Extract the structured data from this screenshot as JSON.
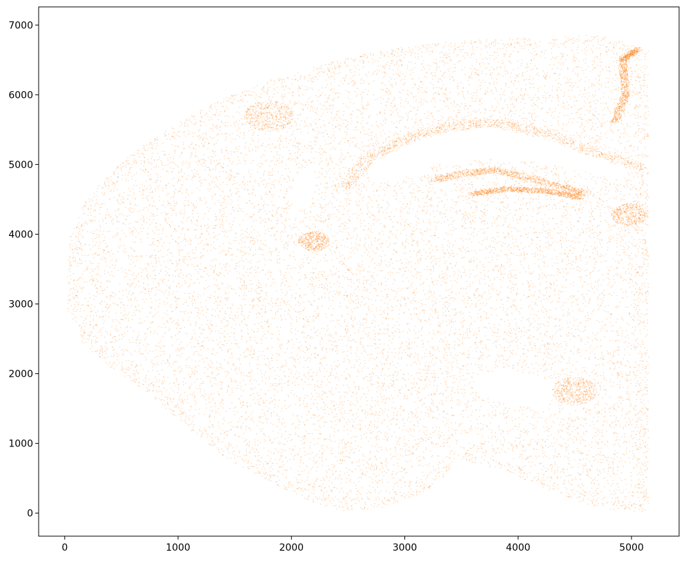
{
  "chart_data": {
    "type": "scatter",
    "title": "",
    "xlabel": "",
    "ylabel": "",
    "xlim": [
      -230,
      5420
    ],
    "ylim": [
      -330,
      7260
    ],
    "xticks": [
      0,
      1000,
      2000,
      3000,
      4000,
      5000
    ],
    "yticks": [
      0,
      1000,
      2000,
      3000,
      4000,
      5000,
      6000,
      7000
    ],
    "xtick_labels": [
      "0",
      "1000",
      "2000",
      "3000",
      "4000",
      "5000"
    ],
    "ytick_labels": [
      "0",
      "1000",
      "2000",
      "3000",
      "4000",
      "5000",
      "6000",
      "7000"
    ],
    "grid": false,
    "legend": "none",
    "series": [
      {
        "color": "#ff7f0e",
        "marker_size": 1,
        "alpha": 0.3,
        "outline": [
          [
            2450,
            20
          ],
          [
            2800,
            80
          ],
          [
            3150,
            280
          ],
          [
            3350,
            520
          ],
          [
            3450,
            780
          ],
          [
            3600,
            720
          ],
          [
            3850,
            620
          ],
          [
            4150,
            420
          ],
          [
            4450,
            200
          ],
          [
            4750,
            60
          ],
          [
            5150,
            10
          ],
          [
            5150,
            6640
          ],
          [
            4950,
            6750
          ],
          [
            4700,
            6860
          ],
          [
            4300,
            6830
          ],
          [
            3800,
            6800
          ],
          [
            3300,
            6750
          ],
          [
            2800,
            6640
          ],
          [
            2300,
            6450
          ],
          [
            1850,
            6230
          ],
          [
            1400,
            5950
          ],
          [
            1000,
            5600
          ],
          [
            650,
            5230
          ],
          [
            380,
            4850
          ],
          [
            180,
            4480
          ],
          [
            50,
            3980
          ],
          [
            20,
            3500
          ],
          [
            30,
            2900
          ],
          [
            150,
            2450
          ],
          [
            400,
            2100
          ],
          [
            750,
            1700
          ],
          [
            1100,
            1200
          ],
          [
            1500,
            700
          ],
          [
            1900,
            380
          ],
          [
            2200,
            150
          ]
        ],
        "holes": [
          [
            [
              1980,
              4480
            ],
            [
              2080,
              4900
            ],
            [
              2180,
              5020
            ],
            [
              2230,
              4780
            ],
            [
              2160,
              4420
            ],
            [
              2060,
              4330
            ]
          ],
          [
            [
              2700,
              5050
            ],
            [
              3000,
              5300
            ],
            [
              3400,
              5480
            ],
            [
              3800,
              5520
            ],
            [
              4200,
              5380
            ],
            [
              4650,
              5150
            ],
            [
              5000,
              4950
            ],
            [
              4900,
              4780
            ],
            [
              4400,
              4980
            ],
            [
              3800,
              5100
            ],
            [
              3300,
              5000
            ],
            [
              2900,
              4750
            ],
            [
              2700,
              4780
            ]
          ],
          [
            [
              3600,
              1950
            ],
            [
              3800,
              2050
            ],
            [
              4100,
              2000
            ],
            [
              4350,
              1800
            ],
            [
              4250,
              1500
            ],
            [
              3900,
              1550
            ],
            [
              3650,
              1700
            ]
          ]
        ],
        "bands": [
          {
            "points": [
              [
                2450,
                4650
              ],
              [
                2700,
                5100
              ],
              [
                3000,
                5350
              ],
              [
                3400,
                5550
              ],
              [
                3800,
                5600
              ],
              [
                4250,
                5450
              ],
              [
                4700,
                5150
              ],
              [
                5120,
                4950
              ]
            ],
            "width": 90
          },
          {
            "points": [
              [
                3250,
                4780
              ],
              [
                3550,
                4880
              ],
              [
                3800,
                4920
              ],
              [
                4050,
                4820
              ],
              [
                4350,
                4700
              ],
              [
                4600,
                4580
              ]
            ],
            "width": 70
          },
          {
            "points": [
              [
                3600,
                4580
              ],
              [
                3900,
                4650
              ],
              [
                4250,
                4620
              ],
              [
                4550,
                4530
              ]
            ],
            "width": 60
          },
          {
            "points": [
              [
                4850,
                5600
              ],
              [
                4950,
                6000
              ],
              [
                4920,
                6500
              ],
              [
                5050,
                6650
              ]
            ],
            "width": 60
          }
        ],
        "dense_spots": [
          {
            "x": 4980,
            "y": 4280,
            "r": 160
          },
          {
            "x": 2200,
            "y": 3900,
            "r": 140
          },
          {
            "x": 1800,
            "y": 5700,
            "r": 220
          },
          {
            "x": 4500,
            "y": 1750,
            "r": 200
          }
        ]
      }
    ]
  }
}
